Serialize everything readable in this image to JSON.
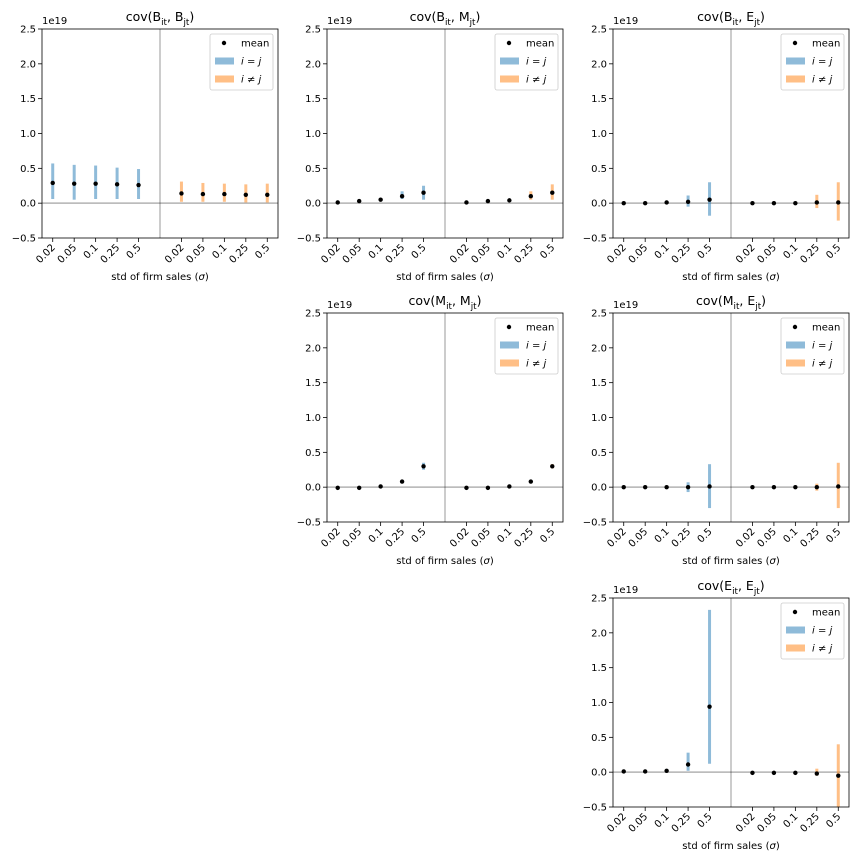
{
  "chart_data": [
    {
      "type": "errorbar",
      "title": [
        {
          "text": "cov(B"
        },
        {
          "text": "it",
          "sub": true
        },
        {
          "text": ", B"
        },
        {
          "text": "jt",
          "sub": true
        },
        {
          "text": ")"
        }
      ],
      "offset_label": "1e19",
      "xlabel": [
        {
          "text": "std of firm sales ("
        },
        {
          "text": "σ",
          "italic": true
        },
        {
          "text": ")"
        }
      ],
      "categories": [
        "0.02",
        "0.05",
        "0.1",
        "0.25",
        "0.5",
        null,
        "0.02",
        "0.05",
        "0.1",
        "0.25",
        "0.5"
      ],
      "ylim": [
        -0.5,
        2.5
      ],
      "yticks": [
        {
          "value": -0.5,
          "label": "−0.5"
        },
        {
          "value": 0,
          "label": "0.0"
        },
        0.5,
        {
          "value": 1,
          "label": "1.0"
        },
        1.5,
        {
          "value": 2,
          "label": "2.0"
        },
        2.5
      ],
      "hline": 0,
      "series": [
        {
          "name": "mean",
          "color": "#000000",
          "values": [
            0.29,
            0.28,
            0.28,
            0.27,
            0.26,
            null,
            0.14,
            0.13,
            0.13,
            0.12,
            0.12
          ]
        },
        {
          "name": [
            {
              "text": "i",
              "italic": true
            },
            {
              "text": " = "
            },
            {
              "text": "j",
              "italic": true
            }
          ],
          "color": "#1f77b4",
          "alpha": 0.5,
          "low": [
            0.06,
            0.05,
            0.06,
            0.06,
            0.06,
            null,
            null,
            null,
            null,
            null,
            null
          ],
          "high": [
            0.57,
            0.55,
            0.54,
            0.51,
            0.49,
            null,
            null,
            null,
            null,
            null,
            null
          ]
        },
        {
          "name": [
            {
              "text": "i",
              "italic": true
            },
            {
              "text": " ≠ "
            },
            {
              "text": "j",
              "italic": true
            }
          ],
          "color": "#ff7f0e",
          "alpha": 0.5,
          "low": [
            null,
            null,
            null,
            null,
            null,
            null,
            0.02,
            0.02,
            0.02,
            0.01,
            0.01
          ],
          "high": [
            null,
            null,
            null,
            null,
            null,
            null,
            0.31,
            0.29,
            0.28,
            0.27,
            0.28
          ]
        }
      ]
    },
    {
      "type": "errorbar",
      "title": [
        {
          "text": "cov(B"
        },
        {
          "text": "it",
          "sub": true
        },
        {
          "text": ", M"
        },
        {
          "text": "jt",
          "sub": true
        },
        {
          "text": ")"
        }
      ],
      "offset_label": "1e19",
      "xlabel": [
        {
          "text": "std of firm sales ("
        },
        {
          "text": "σ",
          "italic": true
        },
        {
          "text": ")"
        }
      ],
      "categories": [
        "0.02",
        "0.05",
        "0.1",
        "0.25",
        "0.5",
        null,
        "0.02",
        "0.05",
        "0.1",
        "0.25",
        "0.5"
      ],
      "ylim": [
        -0.5,
        2.5
      ],
      "yticks": [
        {
          "value": -0.5,
          "label": "−0.5"
        },
        {
          "value": 0,
          "label": "0.0"
        },
        0.5,
        {
          "value": 1,
          "label": "1.0"
        },
        1.5,
        {
          "value": 2,
          "label": "2.0"
        },
        2.5
      ],
      "hline": 0,
      "series": [
        {
          "name": "mean",
          "color": "#000000",
          "values": [
            0.01,
            0.03,
            0.05,
            0.1,
            0.15,
            null,
            0.01,
            0.03,
            0.04,
            0.1,
            0.15
          ]
        },
        {
          "name": [
            {
              "text": "i",
              "italic": true
            },
            {
              "text": " = "
            },
            {
              "text": "j",
              "italic": true
            }
          ],
          "color": "#1f77b4",
          "alpha": 0.5,
          "low": [
            0.0,
            0.02,
            0.03,
            0.06,
            0.05,
            null,
            null,
            null,
            null,
            null,
            null
          ],
          "high": [
            0.02,
            0.04,
            0.07,
            0.17,
            0.25,
            null,
            null,
            null,
            null,
            null,
            null
          ]
        },
        {
          "name": [
            {
              "text": "i",
              "italic": true
            },
            {
              "text": " ≠ "
            },
            {
              "text": "j",
              "italic": true
            }
          ],
          "color": "#ff7f0e",
          "alpha": 0.5,
          "low": [
            null,
            null,
            null,
            null,
            null,
            null,
            0.0,
            0.02,
            0.03,
            0.05,
            0.05
          ],
          "high": [
            null,
            null,
            null,
            null,
            null,
            null,
            0.02,
            0.04,
            0.06,
            0.17,
            0.27
          ]
        }
      ]
    },
    {
      "type": "errorbar",
      "title": [
        {
          "text": "cov(B"
        },
        {
          "text": "it",
          "sub": true
        },
        {
          "text": ", E"
        },
        {
          "text": "jt",
          "sub": true
        },
        {
          "text": ")"
        }
      ],
      "offset_label": "1e19",
      "xlabel": [
        {
          "text": "std of firm sales ("
        },
        {
          "text": "σ",
          "italic": true
        },
        {
          "text": ")"
        }
      ],
      "categories": [
        "0.02",
        "0.05",
        "0.1",
        "0.25",
        "0.5",
        null,
        "0.02",
        "0.05",
        "0.1",
        "0.25",
        "0.5"
      ],
      "ylim": [
        -0.5,
        2.5
      ],
      "yticks": [
        {
          "value": -0.5,
          "label": "−0.5"
        },
        {
          "value": 0,
          "label": "0.0"
        },
        0.5,
        {
          "value": 1,
          "label": "1.0"
        },
        1.5,
        {
          "value": 2,
          "label": "2.0"
        },
        2.5
      ],
      "hline": 0,
      "series": [
        {
          "name": "mean",
          "color": "#000000",
          "values": [
            0,
            0,
            0.01,
            0.02,
            0.05,
            null,
            0,
            0,
            0,
            0.01,
            0.01
          ]
        },
        {
          "name": [
            {
              "text": "i",
              "italic": true
            },
            {
              "text": " = "
            },
            {
              "text": "j",
              "italic": true
            }
          ],
          "color": "#1f77b4",
          "alpha": 0.5,
          "low": [
            -0.01,
            -0.01,
            0,
            -0.05,
            -0.18,
            null,
            null,
            null,
            null,
            null,
            null
          ],
          "high": [
            0.01,
            0.01,
            0.02,
            0.11,
            0.3,
            null,
            null,
            null,
            null,
            null,
            null
          ]
        },
        {
          "name": [
            {
              "text": "i",
              "italic": true
            },
            {
              "text": " ≠ "
            },
            {
              "text": "j",
              "italic": true
            }
          ],
          "color": "#ff7f0e",
          "alpha": 0.5,
          "low": [
            null,
            null,
            null,
            null,
            null,
            null,
            -0.01,
            -0.01,
            -0.01,
            -0.07,
            -0.25
          ],
          "high": [
            null,
            null,
            null,
            null,
            null,
            null,
            0.01,
            0.01,
            0.01,
            0.12,
            0.3
          ]
        }
      ]
    },
    {
      "type": "errorbar",
      "title": [
        {
          "text": "cov(M"
        },
        {
          "text": "it",
          "sub": true
        },
        {
          "text": ", M"
        },
        {
          "text": "jt",
          "sub": true
        },
        {
          "text": ")"
        }
      ],
      "offset_label": "1e19",
      "xlabel": [
        {
          "text": "std of firm sales ("
        },
        {
          "text": "σ",
          "italic": true
        },
        {
          "text": ")"
        }
      ],
      "categories": [
        "0.02",
        "0.05",
        "0.1",
        "0.25",
        "0.5",
        null,
        "0.02",
        "0.05",
        "0.1",
        "0.25",
        "0.5"
      ],
      "ylim": [
        -0.5,
        2.5
      ],
      "yticks": [
        {
          "value": -0.5,
          "label": "−0.5"
        },
        {
          "value": 0,
          "label": "0.0"
        },
        0.5,
        {
          "value": 1,
          "label": "1.0"
        },
        1.5,
        {
          "value": 2,
          "label": "2.0"
        },
        2.5
      ],
      "hline": 0,
      "series": [
        {
          "name": "mean",
          "color": "#000000",
          "values": [
            -0.01,
            -0.01,
            0.01,
            0.08,
            0.3,
            null,
            -0.01,
            -0.01,
            0.01,
            0.08,
            0.3
          ]
        },
        {
          "name": [
            {
              "text": "i",
              "italic": true
            },
            {
              "text": " = "
            },
            {
              "text": "j",
              "italic": true
            }
          ],
          "color": "#1f77b4",
          "alpha": 0.5,
          "low": [
            -0.02,
            -0.02,
            0,
            0.07,
            0.25,
            null,
            null,
            null,
            null,
            null,
            null
          ],
          "high": [
            0,
            0,
            0.02,
            0.09,
            0.35,
            null,
            null,
            null,
            null,
            null,
            null
          ]
        },
        {
          "name": [
            {
              "text": "i",
              "italic": true
            },
            {
              "text": " ≠ "
            },
            {
              "text": "j",
              "italic": true
            }
          ],
          "color": "#ff7f0e",
          "alpha": 0.5,
          "low": [
            null,
            null,
            null,
            null,
            null,
            null,
            -0.02,
            -0.02,
            0,
            0.07,
            0.27
          ],
          "high": [
            null,
            null,
            null,
            null,
            null,
            null,
            0,
            0,
            0.02,
            0.09,
            0.33
          ]
        }
      ]
    },
    {
      "type": "errorbar",
      "title": [
        {
          "text": "cov(M"
        },
        {
          "text": "it",
          "sub": true
        },
        {
          "text": ", E"
        },
        {
          "text": "jt",
          "sub": true
        },
        {
          "text": ")"
        }
      ],
      "offset_label": "1e19",
      "xlabel": [
        {
          "text": "std of firm sales ("
        },
        {
          "text": "σ",
          "italic": true
        },
        {
          "text": ")"
        }
      ],
      "categories": [
        "0.02",
        "0.05",
        "0.1",
        "0.25",
        "0.5",
        null,
        "0.02",
        "0.05",
        "0.1",
        "0.25",
        "0.5"
      ],
      "ylim": [
        -0.5,
        2.5
      ],
      "yticks": [
        {
          "value": -0.5,
          "label": "−0.5"
        },
        {
          "value": 0,
          "label": "0.0"
        },
        0.5,
        {
          "value": 1,
          "label": "1.0"
        },
        1.5,
        {
          "value": 2,
          "label": "2.0"
        },
        2.5
      ],
      "hline": 0,
      "series": [
        {
          "name": "mean",
          "color": "#000000",
          "values": [
            0,
            0,
            0,
            0,
            0.01,
            null,
            0,
            0,
            0,
            0,
            0.01
          ]
        },
        {
          "name": [
            {
              "text": "i",
              "italic": true
            },
            {
              "text": " = "
            },
            {
              "text": "j",
              "italic": true
            }
          ],
          "color": "#1f77b4",
          "alpha": 0.5,
          "low": [
            -0.01,
            -0.01,
            -0.01,
            -0.07,
            -0.3,
            null,
            null,
            null,
            null,
            null,
            null
          ],
          "high": [
            0.01,
            0.01,
            0.01,
            0.07,
            0.33,
            null,
            null,
            null,
            null,
            null,
            null
          ]
        },
        {
          "name": [
            {
              "text": "i",
              "italic": true
            },
            {
              "text": " ≠ "
            },
            {
              "text": "j",
              "italic": true
            }
          ],
          "color": "#ff7f0e",
          "alpha": 0.5,
          "low": [
            null,
            null,
            null,
            null,
            null,
            null,
            -0.01,
            -0.01,
            -0.01,
            -0.05,
            -0.3
          ],
          "high": [
            null,
            null,
            null,
            null,
            null,
            null,
            0.01,
            0.01,
            0.01,
            0.05,
            0.35
          ]
        }
      ]
    },
    {
      "type": "errorbar",
      "title": [
        {
          "text": "cov(E"
        },
        {
          "text": "it",
          "sub": true
        },
        {
          "text": ", E"
        },
        {
          "text": "jt",
          "sub": true
        },
        {
          "text": ")"
        }
      ],
      "offset_label": "1e19",
      "xlabel": [
        {
          "text": "std of firm sales ("
        },
        {
          "text": "σ",
          "italic": true
        },
        {
          "text": ")"
        }
      ],
      "categories": [
        "0.02",
        "0.05",
        "0.1",
        "0.25",
        "0.5",
        null,
        "0.02",
        "0.05",
        "0.1",
        "0.25",
        "0.5"
      ],
      "ylim": [
        -0.5,
        2.5
      ],
      "yticks": [
        {
          "value": -0.5,
          "label": "−0.5"
        },
        {
          "value": 0,
          "label": "0.0"
        },
        0.5,
        {
          "value": 1,
          "label": "1.0"
        },
        1.5,
        {
          "value": 2,
          "label": "2.0"
        },
        2.5
      ],
      "hline": 0,
      "series": [
        {
          "name": "mean",
          "color": "#000000",
          "values": [
            0.01,
            0.01,
            0.02,
            0.11,
            0.94,
            null,
            -0.01,
            -0.01,
            -0.01,
            -0.02,
            -0.05
          ]
        },
        {
          "name": [
            {
              "text": "i",
              "italic": true
            },
            {
              "text": " = "
            },
            {
              "text": "j",
              "italic": true
            }
          ],
          "color": "#1f77b4",
          "alpha": 0.5,
          "low": [
            0,
            0,
            0.01,
            0.02,
            0.12,
            null,
            null,
            null,
            null,
            null,
            null
          ],
          "high": [
            0.02,
            0.02,
            0.04,
            0.28,
            2.33,
            null,
            null,
            null,
            null,
            null,
            null
          ]
        },
        {
          "name": [
            {
              "text": "i",
              "italic": true
            },
            {
              "text": " ≠ "
            },
            {
              "text": "j",
              "italic": true
            }
          ],
          "color": "#ff7f0e",
          "alpha": 0.5,
          "low": [
            null,
            null,
            null,
            null,
            null,
            null,
            -0.02,
            -0.02,
            -0.02,
            -0.05,
            -0.5
          ],
          "high": [
            null,
            null,
            null,
            null,
            null,
            null,
            0,
            0,
            0,
            0.05,
            0.4
          ]
        }
      ]
    }
  ]
}
